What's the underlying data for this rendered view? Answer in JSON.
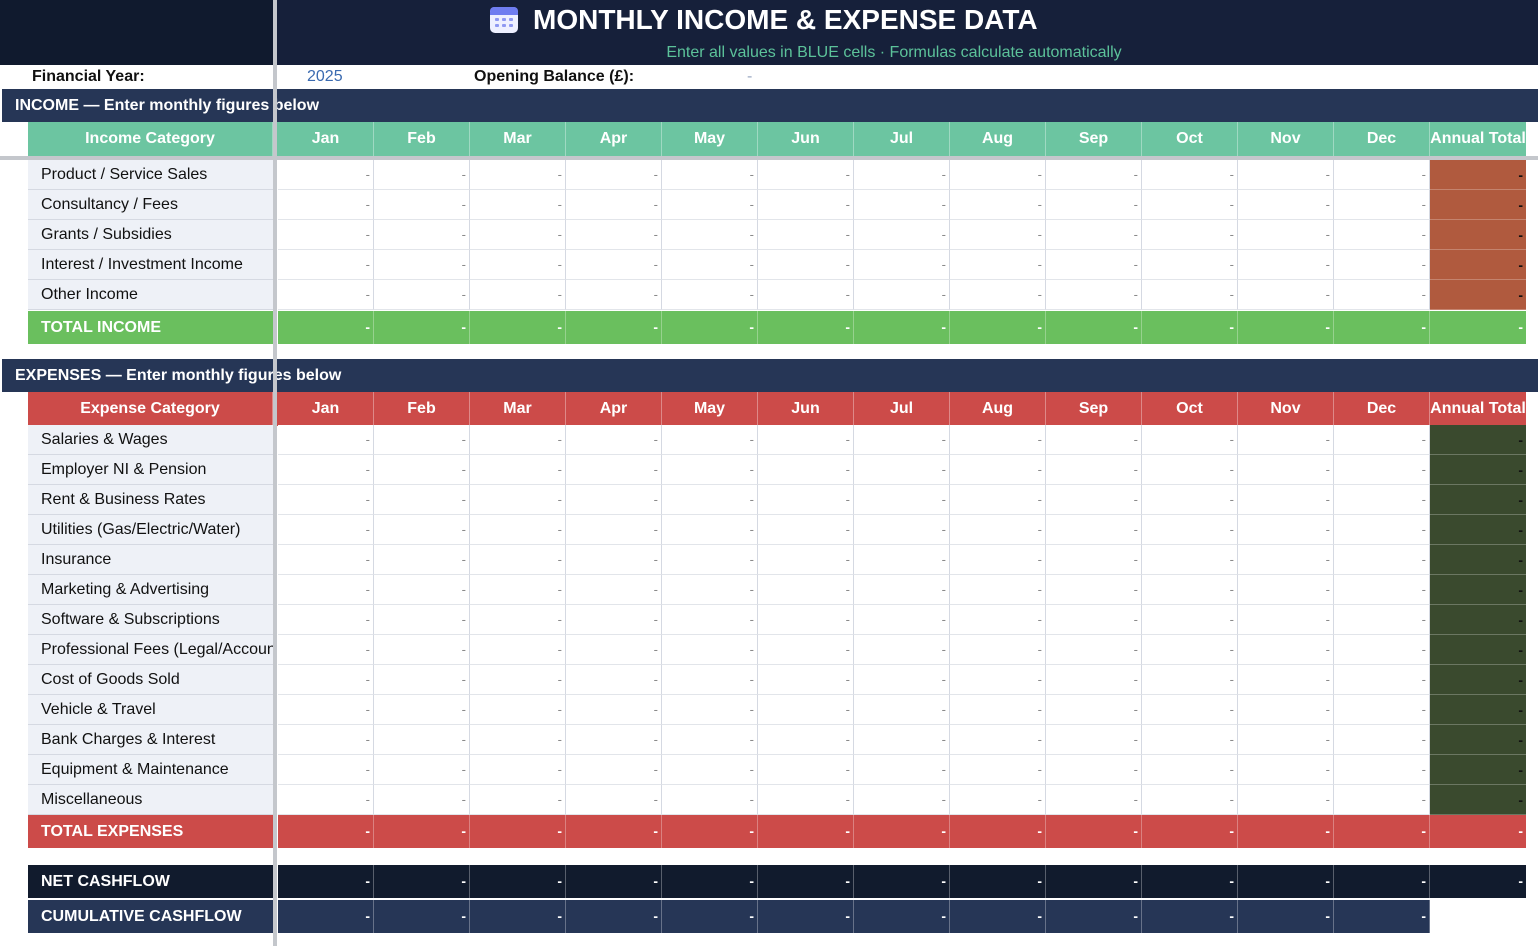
{
  "title": {
    "text": "MONTHLY INCOME & EXPENSE DATA",
    "icon": "calendar-icon",
    "subtitle": "Enter all values in BLUE cells · Formulas calculate automatically"
  },
  "info": {
    "financial_year_label": "Financial Year:",
    "financial_year_value": "2025",
    "opening_balance_label": "Opening Balance (£):",
    "opening_balance_value": "-"
  },
  "months": [
    "Jan",
    "Feb",
    "Mar",
    "Apr",
    "May",
    "Jun",
    "Jul",
    "Aug",
    "Sep",
    "Oct",
    "Nov",
    "Dec"
  ],
  "annual_total_label": "Annual Total",
  "placeholder": "-",
  "income": {
    "section_title": "INCOME — Enter monthly figures below",
    "category_header": "Income Category",
    "rows": [
      "Product / Service Sales",
      "Consultancy / Fees",
      "Grants / Subsidies",
      "Interest / Investment Income",
      "Other Income"
    ],
    "total_label": "TOTAL INCOME"
  },
  "expenses": {
    "section_title": "EXPENSES — Enter monthly figures below",
    "category_header": "Expense Category",
    "rows": [
      "Salaries & Wages",
      "Employer NI & Pension",
      "Rent & Business Rates",
      "Utilities (Gas/Electric/Water)",
      "Insurance",
      "Marketing & Advertising",
      "Software & Subscriptions",
      "Professional Fees (Legal/Accounting)",
      "Cost of Goods Sold",
      "Vehicle & Travel",
      "Bank Charges & Interest",
      "Equipment & Maintenance",
      "Miscellaneous"
    ],
    "total_label": "TOTAL EXPENSES"
  },
  "net_cashflow_label": "NET CASHFLOW",
  "cumulative_cashflow_label": "CUMULATIVE CASHFLOW",
  "colors": {
    "title_bg": "#16203a",
    "section_bg": "#263656",
    "income_header": "#6cc5a1",
    "income_total": "#6abf5e",
    "income_annual": "#b05a3e",
    "expense_header": "#cc4b49",
    "expense_total": "#cc4b49",
    "expense_annual": "#3a4a2e",
    "net_bg": "#111b2d",
    "cumulative_bg": "#263656",
    "subtitle_text": "#5cc29a",
    "blue_value": "#3a6ab0"
  }
}
